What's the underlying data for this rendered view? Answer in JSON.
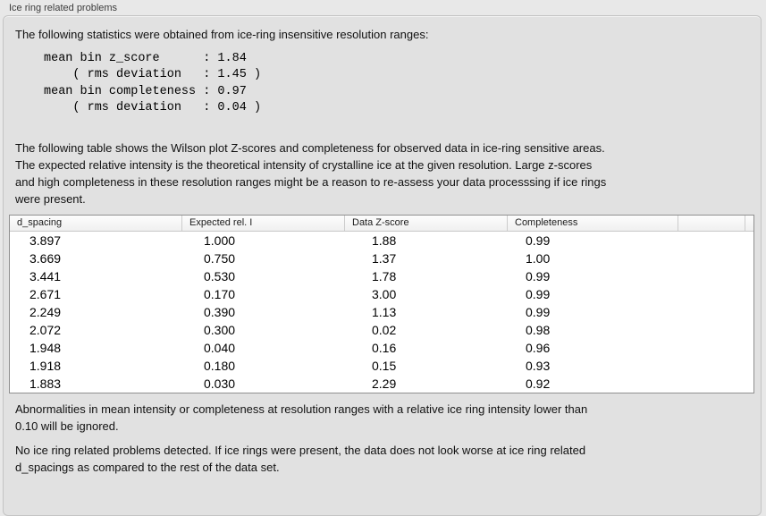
{
  "panel": {
    "title": "Ice ring related problems"
  },
  "intro": {
    "text": "The following statistics were obtained from ice-ring insensitive resolution ranges:"
  },
  "stats": {
    "lines": [
      "mean bin z_score      : 1.84",
      "    ( rms deviation   : 1.45 )",
      "mean bin completeness : 0.97",
      "    ( rms deviation   : 0.04 )"
    ],
    "mean_bin_z_score": "1.84",
    "z_score_rms_deviation": "1.45",
    "mean_bin_completeness": "0.97",
    "completeness_rms_deviation": "0.04"
  },
  "description": {
    "lines": [
      "The following table shows the Wilson plot Z-scores and completeness for observed data in ice-ring sensitive areas.",
      "The expected relative intensity is the theoretical intensity of crystalline ice at the given resolution. Large z-scores",
      "and high completeness in these resolution ranges might be a reason to re-assess your data processsing if ice rings",
      "were present."
    ]
  },
  "table": {
    "columns": [
      "d_spacing",
      "Expected rel. I",
      "Data Z-score",
      "Completeness",
      ""
    ],
    "rows": [
      [
        "3.897",
        "1.000",
        "1.88",
        "0.99"
      ],
      [
        "3.669",
        "0.750",
        "1.37",
        "1.00"
      ],
      [
        "3.441",
        "0.530",
        "1.78",
        "0.99"
      ],
      [
        "2.671",
        "0.170",
        "3.00",
        "0.99"
      ],
      [
        "2.249",
        "0.390",
        "1.13",
        "0.99"
      ],
      [
        "2.072",
        "0.300",
        "0.02",
        "0.98"
      ],
      [
        "1.948",
        "0.040",
        "0.16",
        "0.96"
      ],
      [
        "1.918",
        "0.180",
        "0.15",
        "0.93"
      ],
      [
        "1.883",
        "0.030",
        "2.29",
        "0.92"
      ]
    ]
  },
  "notes": {
    "ignore_lines": [
      "Abnormalities in mean intensity or completeness at resolution ranges with a relative ice ring intensity lower than",
      "0.10 will be ignored."
    ],
    "conclusion_lines": [
      "No ice ring related problems detected. If ice rings were present, the data does not look worse at ice ring related",
      "d_spacings as compared to the rest of the data set."
    ]
  },
  "colors": {
    "page_bg": "#e8e8e8",
    "groupbox_bg": "#e1e1e1",
    "groupbox_border": "#c4c4c4",
    "table_bg": "#ffffff",
    "table_border": "#8f8f8f",
    "header_separator": "#cccccc",
    "text": "#111111"
  }
}
